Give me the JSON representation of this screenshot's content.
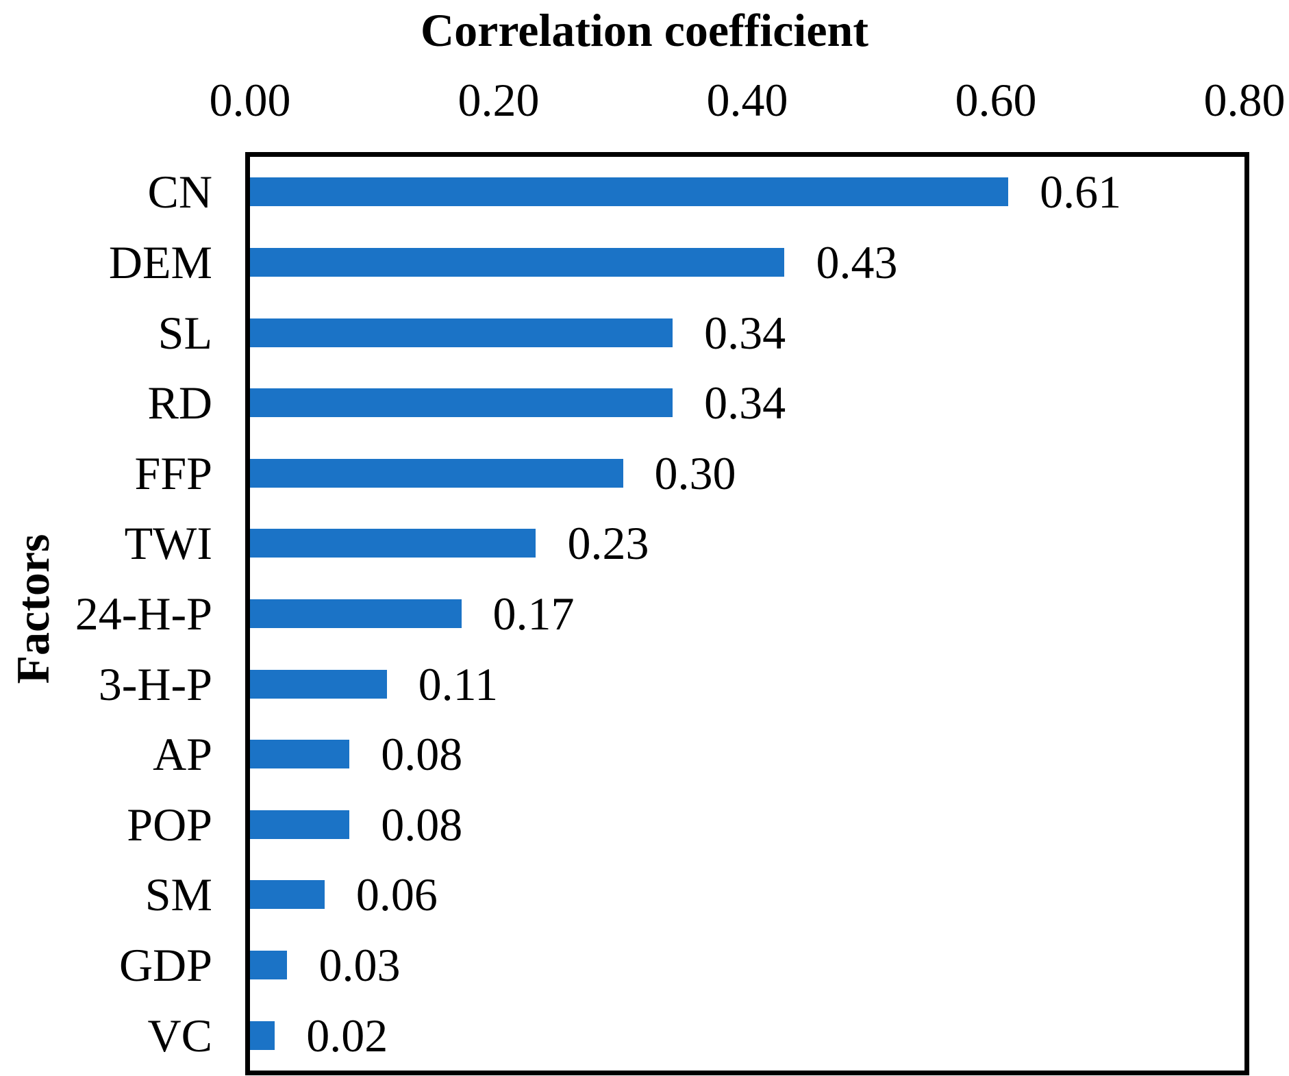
{
  "chart_data": {
    "type": "bar",
    "orientation": "horizontal",
    "title": "Correlation coefficient",
    "xlabel": "Correlation coefficient",
    "ylabel": "Factors",
    "categories": [
      "CN",
      "DEM",
      "SL",
      "RD",
      "FFP",
      "TWI",
      "24-H-P",
      "3-H-P",
      "AP",
      "POP",
      "SM",
      "GDP",
      "VC"
    ],
    "values": [
      0.61,
      0.43,
      0.34,
      0.34,
      0.3,
      0.23,
      0.17,
      0.11,
      0.08,
      0.08,
      0.06,
      0.03,
      0.02
    ],
    "value_labels": [
      "0.61",
      "0.43",
      "0.34",
      "0.34",
      "0.30",
      "0.23",
      "0.17",
      "0.11",
      "0.08",
      "0.08",
      "0.06",
      "0.03",
      "0.02"
    ],
    "xlim": [
      0.0,
      0.8
    ],
    "xtick_labels": [
      "0.00",
      "0.20",
      "0.40",
      "0.60",
      "0.80"
    ],
    "xtick_values": [
      0.0,
      0.2,
      0.4,
      0.6,
      0.8
    ],
    "x_axis_position": "top",
    "grid": false,
    "legend": "none",
    "bar_color": "#1B73C6",
    "border_color": "#000000",
    "text_color": "#000000",
    "background_color": "#FFFFFF"
  }
}
